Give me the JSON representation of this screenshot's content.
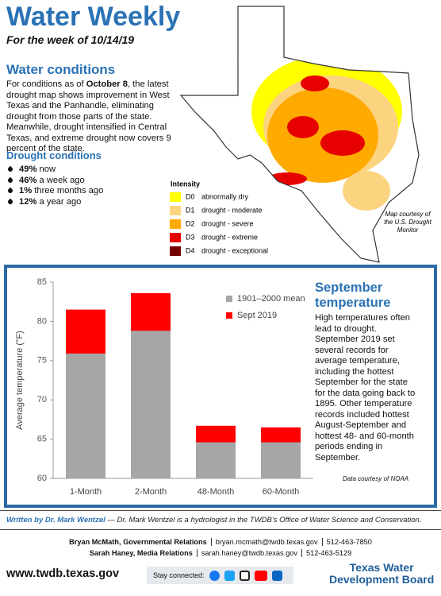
{
  "header": {
    "title": "Water Weekly",
    "subtitle": "For the week of 10/14/19"
  },
  "conditions": {
    "heading": "Water conditions",
    "paragraph": [
      "For conditions as of ",
      "October 8",
      ", the latest drought map shows improvement in West Texas and the Panhandle, eliminating drought from those parts of the state. Meanwhile, drought intensified in Central Texas, and extreme drought now covers 9 percent of the state."
    ]
  },
  "drought": {
    "heading": "Drought conditions",
    "items": [
      {
        "value": "49%",
        "text": "now"
      },
      {
        "value": "46%",
        "text": "a week ago"
      },
      {
        "value": "1%",
        "text": "three months ago"
      },
      {
        "value": "12%",
        "text": "a year ago"
      }
    ]
  },
  "map": {
    "legend_title": "Intensity",
    "legend": [
      {
        "code": "D0",
        "label": "abnormally dry",
        "color": "#ffff00"
      },
      {
        "code": "D1",
        "label": "drought - moderate",
        "color": "#fcd37f"
      },
      {
        "code": "D2",
        "label": "drought - severe",
        "color": "#ffaa00"
      },
      {
        "code": "D3",
        "label": "drought - extreme",
        "color": "#e60000"
      },
      {
        "code": "D4",
        "label": "drought - exceptional",
        "color": "#730000"
      }
    ],
    "credit": "Map courtesy of the U.S. Drought Monitor"
  },
  "chart_data": {
    "type": "bar",
    "categories": [
      "1-Month",
      "2-Month",
      "48-Month",
      "60-Month"
    ],
    "series": [
      {
        "name": "1901–2000 mean",
        "color": "#a6a6a6",
        "values": [
          75.9,
          78.8,
          64.6,
          64.6
        ]
      },
      {
        "name": "Sept 2019",
        "color": "#ff0000",
        "values": [
          81.5,
          83.6,
          66.7,
          66.5
        ]
      }
    ],
    "ylim": [
      60,
      85
    ],
    "yticks": [
      60,
      65,
      70,
      75,
      80,
      85
    ],
    "y_label": "Average temperature (°F)"
  },
  "sidebar": {
    "heading": "September temperature",
    "text": "High temperatures often lead to drought. September 2019 set several records for average temperature, including the hottest September for the state for the data going back to 1895. Other temperature records included hottest August-September and hottest 48- and 60-month periods ending in September.",
    "source": "Data courtesy of NOAA"
  },
  "credit": {
    "author": "Written by Dr. Mark Wentzel",
    "bio": "— Dr. Mark Wentzel is a hydrologist in the TWDB's Office of Water Science and Conservation."
  },
  "contacts": [
    {
      "name": "Bryan McMath, Governmental Relations",
      "email": "bryan.mcmath@twdb.texas.gov",
      "phone": "512-463-7850"
    },
    {
      "name": "Sarah Haney, Media Relations",
      "email": "sarah.haney@twdb.texas.gov",
      "phone": "512-463-5129"
    }
  ],
  "footer": {
    "url": "www.twdb.texas.gov",
    "stay": "Stay connected:",
    "logo": [
      "Texas Water",
      "Development Board"
    ]
  }
}
